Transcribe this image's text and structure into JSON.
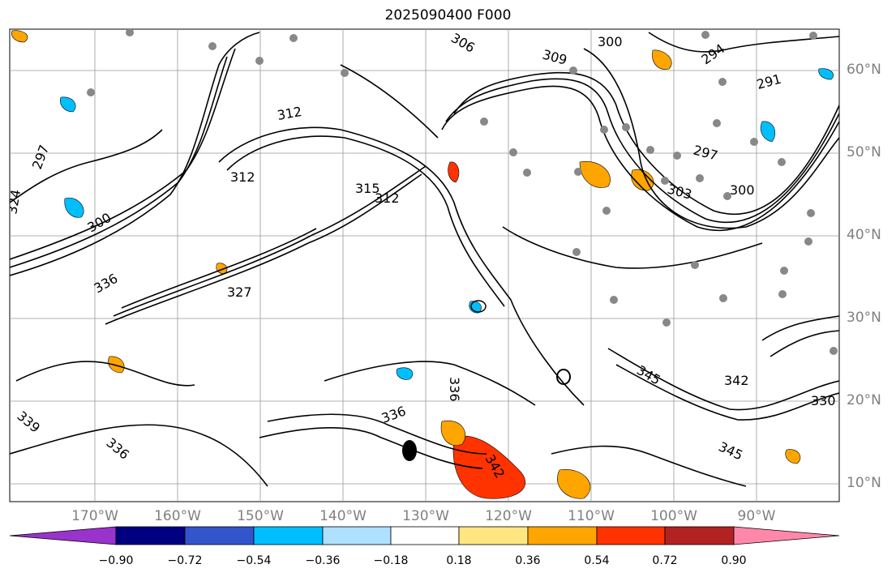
{
  "title": "2025090400 F000",
  "latitude_labels": [
    "60°N",
    "50°N",
    "40°N",
    "30°N",
    "20°N",
    "10°N"
  ],
  "longitude_labels": [
    "170°W",
    "160°W",
    "150°W",
    "140°W",
    "130°W",
    "120°W",
    "110°W",
    "100°W",
    "90°W"
  ],
  "contour_labels": [
    "300",
    "294",
    "291",
    "303",
    "306",
    "309",
    "312",
    "315",
    "327",
    "330",
    "336",
    "339",
    "342",
    "345",
    "324",
    "297"
  ],
  "colorbar": {
    "tick_labels": [
      "−0.90",
      "−0.72",
      "−0.54",
      "−0.36",
      "−0.18",
      "0.18",
      "0.36",
      "0.54",
      "0.72",
      "0.90"
    ],
    "colors": [
      "#9933cc",
      "#000080",
      "#3355cc",
      "#00bfff",
      "#aee0ff",
      "#ffffff",
      "#ffe680",
      "#ffa500",
      "#ff3300",
      "#b22222",
      "#ff88aa"
    ]
  },
  "colors": {
    "contour": "#000000",
    "grid": "#999999",
    "marker": "#888888"
  }
}
